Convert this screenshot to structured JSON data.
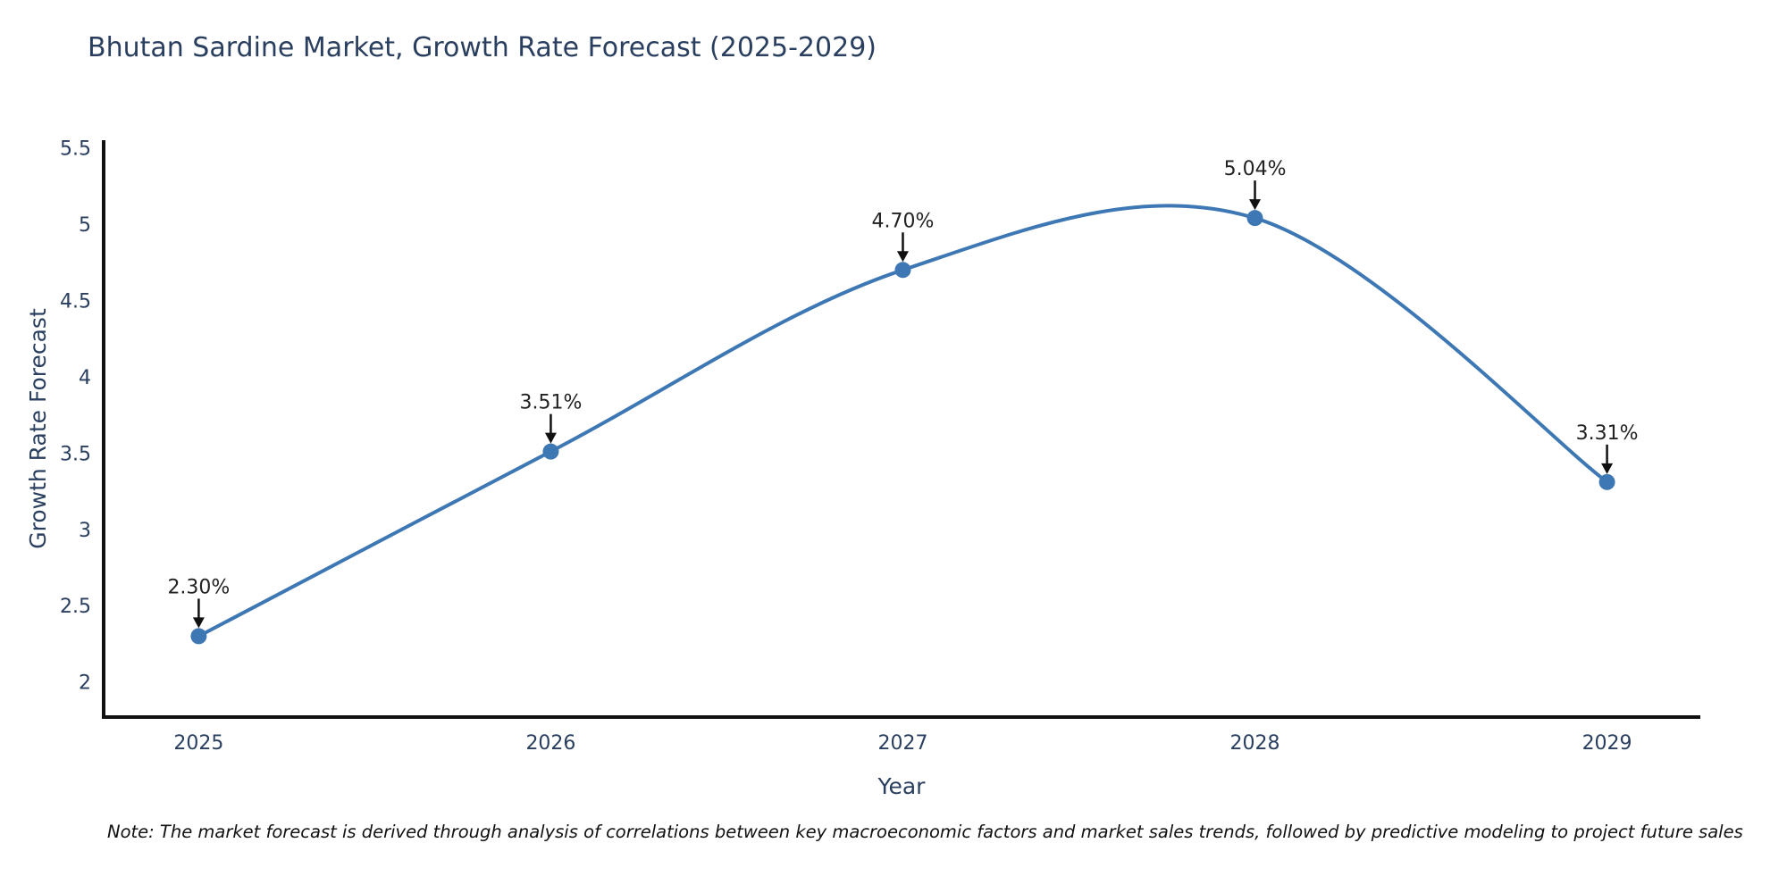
{
  "chart_data": {
    "type": "line",
    "title": "Bhutan Sardine Market, Growth Rate Forecast (2025-2029)",
    "xlabel": "Year",
    "ylabel": "Growth Rate Forecast",
    "x": [
      2025,
      2026,
      2027,
      2028,
      2029
    ],
    "values": [
      2.3,
      3.51,
      4.7,
      5.04,
      3.31
    ],
    "point_labels": [
      "2.30%",
      "3.51%",
      "4.70%",
      "5.04%",
      "3.31%"
    ],
    "x_tick_labels": [
      "2025",
      "2026",
      "2027",
      "2028",
      "2029"
    ],
    "y_ticks": [
      2,
      2.5,
      3,
      3.5,
      4,
      4.5,
      5,
      5.5
    ],
    "xlim": [
      2024.73,
      2029.265
    ],
    "ylim": [
      1.77,
      5.55
    ],
    "line_shape": "spline",
    "grid": false,
    "legend_position": "none",
    "colors": {
      "line": "#3e78b4",
      "marker": "#3e78b4",
      "axis": "#111111",
      "title_text": "#2a3f5f",
      "tick_text": "#2a3f5f",
      "annotation_text": "#222222",
      "annotation_arrow": "#111111",
      "background": "#ffffff"
    }
  },
  "note": "Note: The market forecast is derived through analysis of correlations between key macroeconomic factors and market sales trends, followed by predictive modeling to project future sales"
}
